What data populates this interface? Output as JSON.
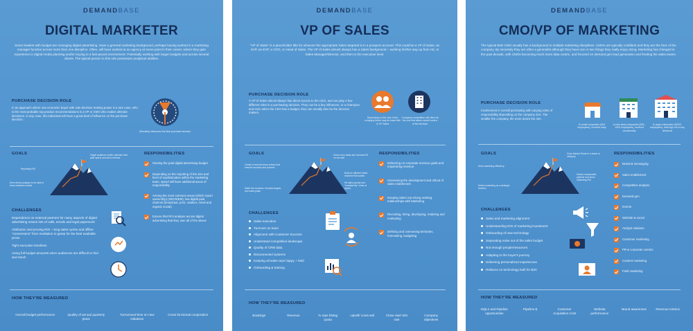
{
  "brand": {
    "bold": "DEMAND",
    "light": "BASE"
  },
  "panels": [
    {
      "title": "DIGITAL MARKETER",
      "intro": "Some leaders with budget are managing digital advertising. Have a general marketing background, perhaps having worked in a marketing manager function across more than one discipline. Often, will have worked at an agency at some point in their career, where they gain experience in digital media planning and/or buying in a fast-paced environment. Potentially working with larger budgets and across several clients. The typical person in this role possesses analytical abilities.",
      "pdr_heading": "PURCHASE DECISION ROLE",
      "pdr_text": "In an approach where one economic buyer with sole decision-making power is a rare case, who is the most probable top product recommendations is a VP or CMO who makes ultimate decisions. In any case, this individual will have a great deal of influence on the purchase decision.",
      "pdr_caption": "Ultimately influences the final purchase decision",
      "goals_heading": "GOALS",
      "goal_labels": [
        "Target audience: better optimize their paid spend and drive revenue",
        "Reporting ROI",
        "Drive timely analysis to be able to show business results"
      ],
      "resp_heading": "RESPONSIBILITIES",
      "responsibilities": [
        "Owning the paid digital advertising budget",
        "Depending on the reporting of the size and level of sophistication within the marketing team, spend will have additional areas of responsibility",
        "Among the most common areas (which report ownership) (SEO/SEM), low digital paid channel (broadcast, print, outdoor, email and organic social)",
        "Ensure that ROI analysis across digital advertising that they own all of the above"
      ],
      "ch_heading": "CHALLENGES",
      "challenges": [
        "Dependence on external partners for many aspects of digital advertising means lots of calls, emails and legal paperwork",
        "Attribution and proving ROI – long sales cycles and offline \"conversions\" from mediation to grasp for the best available prove",
        "Tight execution timelines",
        "Using full budget amounts when audiences are difficult to find and reach"
      ],
      "measured_heading": "HOW THEY'RE MEASURED",
      "metrics": [
        "Overall budget performance",
        "Quality of annual quarterly plans",
        "Turnaround time on new initiatives",
        "Cross functional cooperation"
      ],
      "colors": {
        "accent": "#e8792d",
        "navy": "#142e57"
      }
    },
    {
      "title": "VP OF SALES",
      "intro": "\"VP of Sales\" is a placeholder title for whoever the appropriate Sales targeted is in a prospect account. This could be a VP of Sales, an SVP, an EVP, a CRO, or Head of Sales. The VP of Sales almost always has a Sales background – working his/her way up from AE, to Sales Manager/Director, and then to the executive level.",
      "pdr_heading": "PURCHASE DECISION ROLE",
      "pdr_text": "A VP of Sales almost always has direct access to the CEO, and can play a few different roles in a purchasing decision. They can be a key influencer, or a champion and even when the CEO has a budget, they can usually also be the decision makers.",
      "pdr_captions": [
        "Depending on the size of the company these may be lower title or VP Sales",
        "Company competition will often be the one that takes overall control of the decision"
      ],
      "goals_heading": "GOALS",
      "goal_labels": [
        "Create a revenue team culture that ensures success and process",
        "Close more deals and increase lift on win rate",
        "Build an efficient Sales machine that scales",
        "Make the numbers: hit sales targets and sales goals",
        "Hit sales quotas and \"consistently\" close at speed"
      ],
      "resp_heading": "RESPONSIBILITIES",
      "responsibilities": [
        "Delivering on corporate revenue goals and maximizing revenue",
        "Overseeing the development and rollout of sales enablement",
        "Keeping Sales rep strong working relationships with Marketing",
        "Recruiting, hiring, developing, retaining and motivating",
        "Defining and overseeing territories, forecasting, budgeting"
      ],
      "ch_heading": "CHALLENGES",
      "challenges": [
        "Sales execution",
        "Turnover on team",
        "Alignment with Customer Success",
        "Understand competitive landscape",
        "Quality of CRM data",
        "Disconnected systems",
        "Keeping all sales reps happy + held",
        "Onboarding & training"
      ],
      "measured_heading": "HOW THEY'RE MEASURED",
      "metrics": [
        "Bookings",
        "Revenue",
        "% reps hitting quota",
        "Upsell/ cross-sell",
        "Close rate/ Win rate",
        "Company objectives"
      ],
      "colors": {
        "accent": "#e8792d",
        "navy": "#142e57"
      }
    },
    {
      "title": "CMO/VP OF MARKETING",
      "intro": "The typical B2B CMO usually has a background in multiple marketing disciplines. CMOs are typically confident and they are the face of the company. By necessity they are often a generalist although they have one or two things they really enjoy doing. Marketing has changed in the past decade, with CMOs becoming much more data centric, and focused on demand gen lead generation and feeding the sales teams.",
      "pdr_heading": "PURCHASE DECISION ROLE",
      "pdr_text": "Involvement in overall purchasing with varying roles of responsibility depending on the company size. The smaller the company, the more active the role.",
      "pdr_captions": [
        "In small companies (500 employees), involved early",
        "In mid-sized companies (500–1000 employees), involved occasionally",
        "In large enterprises (5000+ employees), final sign off on key decisions"
      ],
      "goals_heading": "GOALS",
      "goal_labels": [
        "Grow Market Share in a brand or category",
        "Drive marketing efficiency",
        "Deliver measurable pipeline and show marketing ROI",
        "Define marketing as a strategic function"
      ],
      "resp_heading": "RESPONSIBILITIES",
      "responsibilities": [
        "Brand & messaging",
        "Sales enablement",
        "Competitive analysis",
        "Demand gen",
        "Events",
        "Website & social",
        "Analyst relations",
        "Customer marketing",
        "PR & corporate comms",
        "Content marketing",
        "Field marketing"
      ],
      "ch_heading": "CHALLENGES",
      "challenges": [
        "Sales and marketing alignment",
        "Understanding ROI of marketing investment",
        "Onboarding of new technology",
        "Separating noise out of the sales budget",
        "Not enough people/resources",
        "Adapting to the buyer's journey",
        "Delivering personalized experiences",
        "Reliance on technology built for B2C"
      ],
      "measured_heading": "HOW THEY'RE MEASURED",
      "metrics": [
        "MQLs and Pipeline opportunities",
        "Pipeline $",
        "Customer Acquisition Cost",
        "Website performance",
        "Brand awareness",
        "Revenue metrics"
      ],
      "colors": {
        "accent": "#e8792d",
        "navy": "#142e57"
      }
    }
  ]
}
